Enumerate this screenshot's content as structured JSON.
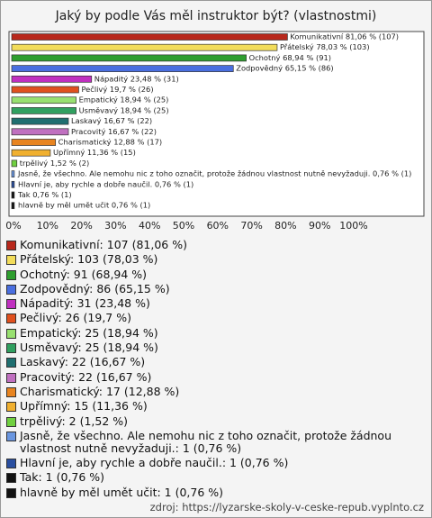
{
  "chart_data": {
    "type": "bar",
    "orientation": "horizontal",
    "title": "Jaký by podle Vás měl instruktor být? (vlastnostmi)",
    "categories": [
      "Komunikativní",
      "Přátelský",
      "Ochotný",
      "Zodpovědný",
      "Nápaditý",
      "Pečlivý",
      "Empatický",
      "Usměvavý",
      "Laskavý",
      "Pracovitý",
      "Charismatický",
      "Upřímný",
      "trpělivý",
      "Jasně, že všechno. Ale nemohu nic z toho označit, protože žádnou vlastnost nutně nevyžaduji.",
      "Hlavní je, aby rychle a dobře naučil.",
      "Tak",
      "hlavně by měl umět učit"
    ],
    "values": [
      81.06,
      78.03,
      68.94,
      65.15,
      23.48,
      19.7,
      18.94,
      18.94,
      16.67,
      16.67,
      12.88,
      11.36,
      1.52,
      0.76,
      0.76,
      0.76,
      0.76
    ],
    "value_labels": [
      "Komunikativní 81,06 % (107)",
      "Přátelský 78,03 % (103)",
      "Ochotný 68,94 % (91)",
      "Zodpovědný 65,15 % (86)",
      "Nápaditý 23,48 % (31)",
      "Pečlivý 19,7 % (26)",
      "Empatický 18,94 % (25)",
      "Usměvavý 18,94 % (25)",
      "Laskavý 16,67 % (22)",
      "Pracovitý 16,67 % (22)",
      "Charismatický 12,88 % (17)",
      "Upřímný 11,36 % (15)",
      "trpělivý 1,52 % (2)",
      "Jasně, že všechno. Ale nemohu nic z toho označit, protože žádnou vlastnost nutně nevyžaduji. 0,76 % (1)",
      "Hlavní je, aby rychle a dobře naučil. 0,76 % (1)",
      "Tak 0,76 % (1)",
      "hlavně by měl umět učit 0,76 % (1)"
    ],
    "legend_labels": [
      "Komunikativní: 107 (81,06 %)",
      "Přátelský: 103 (78,03 %)",
      "Ochotný: 91 (68,94 %)",
      "Zodpovědný: 86 (65,15 %)",
      "Nápaditý: 31 (23,48 %)",
      "Pečlivý: 26 (19,7 %)",
      "Empatický: 25 (18,94 %)",
      "Usměvavý: 25 (18,94 %)",
      "Laskavý: 22 (16,67 %)",
      "Pracovitý: 22 (16,67 %)",
      "Charismatický: 17 (12,88 %)",
      "Upřímný: 15 (11,36 %)",
      "trpělivý: 2 (1,52 %)",
      "Jasně, že všechno. Ale nemohu nic z toho označit, protože žádnou vlastnost nutně nevyžaduji.: 1 (0,76 %)",
      "Hlavní je, aby rychle a dobře naučil.: 1 (0,76 %)",
      "Tak: 1 (0,76 %)",
      "hlavně by měl umět učit: 1 (0,76 %)"
    ],
    "colors": [
      "#b8281c",
      "#f2dc5a",
      "#2e9e2e",
      "#4a6fe0",
      "#c030c0",
      "#e0501e",
      "#98e070",
      "#30a060",
      "#1f6f70",
      "#c070c0",
      "#e88420",
      "#f0b030",
      "#70d040",
      "#6a96e0",
      "#2a4fa0",
      "#111111",
      "#111111"
    ],
    "xlim": [
      0,
      100
    ],
    "xticks": [
      {
        "value": 0,
        "label": "0%"
      },
      {
        "value": 10,
        "label": "10%"
      },
      {
        "value": 20,
        "label": "20%"
      },
      {
        "value": 30,
        "label": "30%"
      },
      {
        "value": 40,
        "label": "40%"
      },
      {
        "value": 50,
        "label": "50%"
      },
      {
        "value": 60,
        "label": "60%"
      },
      {
        "value": 70,
        "label": "70%"
      },
      {
        "value": 80,
        "label": "80%"
      },
      {
        "value": 90,
        "label": "90%"
      },
      {
        "value": 100,
        "label": "100%"
      }
    ],
    "grid": false,
    "source": "zdroj: https://lyzarske-skoly-v-ceske-repub.vyplnto.cz"
  }
}
